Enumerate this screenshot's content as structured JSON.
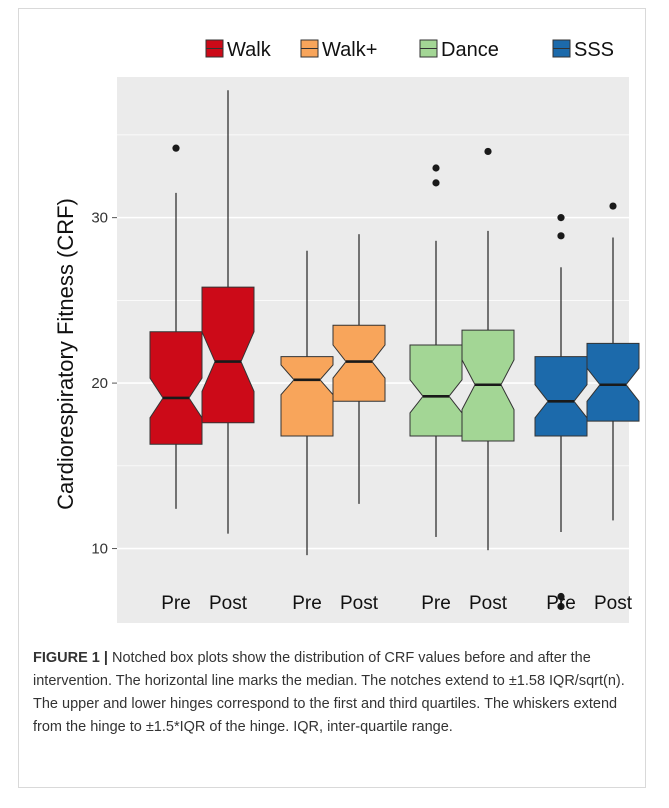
{
  "chart_data": {
    "type": "boxplot",
    "ylabel": "Cardiorespiratory Fitness (CRF)",
    "xlabel": "",
    "ylim": [
      5.5,
      38.5
    ],
    "yticks": [
      10,
      20,
      30
    ],
    "grid": true,
    "legend_position": "top",
    "groups": [
      {
        "name": "Walk",
        "color": "#cc0a18",
        "boxes": [
          {
            "label": "Pre",
            "q1": 16.3,
            "median": 19.1,
            "q3": 23.1,
            "notch_low": 17.9,
            "notch_high": 20.3,
            "whisker_low": 12.4,
            "whisker_high": 31.5,
            "outliers": [
              34.2
            ]
          },
          {
            "label": "Post",
            "q1": 17.6,
            "median": 21.3,
            "q3": 25.8,
            "notch_low": 19.5,
            "notch_high": 23.1,
            "whisker_low": 10.9,
            "whisker_high": 37.7,
            "outliers": []
          }
        ]
      },
      {
        "name": "Walk+",
        "color": "#f8a55b",
        "boxes": [
          {
            "label": "Pre",
            "q1": 16.8,
            "median": 20.2,
            "q3": 21.6,
            "notch_low": 19.3,
            "notch_high": 21.1,
            "whisker_low": 9.6,
            "whisker_high": 28.0,
            "outliers": []
          },
          {
            "label": "Post",
            "q1": 18.9,
            "median": 21.3,
            "q3": 23.5,
            "notch_low": 20.3,
            "notch_high": 22.3,
            "whisker_low": 12.7,
            "whisker_high": 29.0,
            "outliers": []
          }
        ]
      },
      {
        "name": "Dance",
        "color": "#a3d695",
        "boxes": [
          {
            "label": "Pre",
            "q1": 16.8,
            "median": 19.2,
            "q3": 22.3,
            "notch_low": 18.2,
            "notch_high": 20.2,
            "whisker_low": 10.7,
            "whisker_high": 28.6,
            "outliers": [
              32.1,
              33.0
            ]
          },
          {
            "label": "Post",
            "q1": 16.5,
            "median": 19.9,
            "q3": 23.2,
            "notch_low": 18.4,
            "notch_high": 21.4,
            "whisker_low": 9.9,
            "whisker_high": 29.2,
            "outliers": [
              34.0
            ]
          }
        ]
      },
      {
        "name": "SSS",
        "color": "#1c6aab",
        "boxes": [
          {
            "label": "Pre",
            "q1": 16.8,
            "median": 18.9,
            "q3": 21.6,
            "notch_low": 17.9,
            "notch_high": 19.9,
            "whisker_low": 11.0,
            "whisker_high": 27.0,
            "outliers": [
              6.5,
              7.1,
              28.9,
              30.0
            ]
          },
          {
            "label": "Post",
            "q1": 17.7,
            "median": 19.9,
            "q3": 22.4,
            "notch_low": 18.9,
            "notch_high": 20.9,
            "whisker_low": 11.7,
            "whisker_high": 28.8,
            "outliers": [
              30.7
            ]
          }
        ]
      }
    ]
  },
  "caption": {
    "label": "FIGURE 1 |",
    "text": " Notched box plots show the distribution of CRF values before and after the intervention. The horizontal line marks the median. The notches extend to ±1.58 IQR/sqrt(n). The upper and lower hinges correspond to the first and third quartiles. The whiskers extend from the hinge to ±1.5*IQR of the hinge. IQR, inter-quartile range."
  }
}
